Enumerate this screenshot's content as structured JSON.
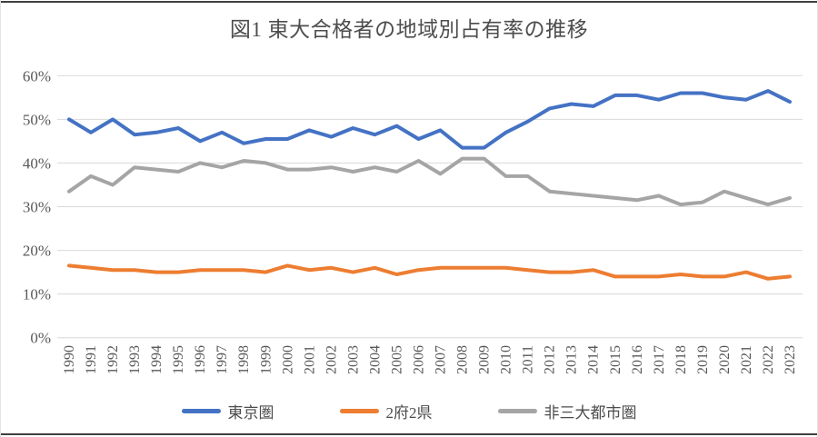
{
  "chart_data": {
    "type": "line",
    "title": "図1 東大合格者の地域別占有率の推移",
    "xlabel": "",
    "ylabel": "",
    "x": [
      "1990",
      "1991",
      "1992",
      "1993",
      "1994",
      "1995",
      "1996",
      "1997",
      "1998",
      "1999",
      "2000",
      "2001",
      "2002",
      "2003",
      "2004",
      "2005",
      "2006",
      "2007",
      "2008",
      "2009",
      "2010",
      "2011",
      "2012",
      "2013",
      "2014",
      "2015",
      "2016",
      "2017",
      "2018",
      "2019",
      "2020",
      "2021",
      "2022",
      "2023"
    ],
    "series": [
      {
        "name": "東京圏",
        "color": "#4472C4",
        "values": [
          50,
          47,
          50,
          46.5,
          47,
          48,
          45,
          47,
          44.5,
          45.5,
          45.5,
          47.5,
          46,
          48,
          46.5,
          48.5,
          45.5,
          47.5,
          43.5,
          43.5,
          47,
          49.5,
          52.5,
          53.5,
          53,
          55.5,
          55.5,
          54.5,
          56,
          56,
          55,
          54.5,
          56.5,
          54
        ]
      },
      {
        "name": "2府2県",
        "color": "#ED7D31",
        "values": [
          16.5,
          16,
          15.5,
          15.5,
          15,
          15,
          15.5,
          15.5,
          15.5,
          15,
          16.5,
          15.5,
          16,
          15,
          16,
          14.5,
          15.5,
          16,
          16,
          16,
          16,
          15.5,
          15,
          15,
          15.5,
          14,
          14,
          14,
          14.5,
          14,
          14,
          15,
          13.5,
          14
        ]
      },
      {
        "name": "非三大都市圏",
        "color": "#A5A5A5",
        "values": [
          33.5,
          37,
          35,
          39,
          38.5,
          38,
          40,
          39,
          40.5,
          40,
          38.5,
          38.5,
          39,
          38,
          39,
          38,
          40.5,
          37.5,
          41,
          41,
          37,
          37,
          33.5,
          33,
          32.5,
          32,
          31.5,
          32.5,
          30.5,
          31,
          33.5,
          32,
          30.5,
          32
        ]
      }
    ],
    "ylim": [
      0,
      60
    ],
    "ytick_labels": [
      "0%",
      "10%",
      "20%",
      "30%",
      "40%",
      "50%",
      "60%"
    ],
    "unit": "percent",
    "grid": "horizontal",
    "gridline_color": "#D9D9D9",
    "axis_text_color": "#595959",
    "legend_position": "bottom",
    "x_label_rotation": -90
  }
}
